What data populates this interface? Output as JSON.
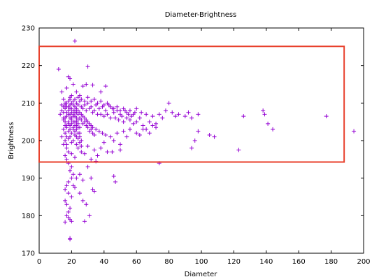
{
  "chart_data": {
    "type": "scatter",
    "title": "Diameter-Brightness",
    "xlabel": "Diameter",
    "ylabel": "Brightness",
    "xlim": [
      0,
      200
    ],
    "ylim": [
      170,
      230
    ],
    "xticks": [
      "0",
      "20",
      "40",
      "60",
      "80",
      "100",
      "120",
      "140",
      "160",
      "180",
      "200"
    ],
    "yticks": [
      "170",
      "180",
      "190",
      "200",
      "210",
      "220",
      "230"
    ],
    "grid": false,
    "legend": "none",
    "marker": "plus",
    "point_color": "#9400d3",
    "highlight_box": {
      "x0": 0,
      "x1": 188,
      "y0": 194.3,
      "y1": 225.1,
      "color": "#e8412c"
    },
    "series": [
      {
        "points": [
          [
            12,
            219
          ],
          [
            14,
            213
          ],
          [
            15,
            211
          ],
          [
            16,
            210
          ],
          [
            14,
            208
          ],
          [
            13,
            207
          ],
          [
            15,
            206
          ],
          [
            16,
            205
          ],
          [
            17,
            204
          ],
          [
            15,
            203
          ],
          [
            14,
            201
          ],
          [
            16,
            200
          ],
          [
            15,
            199
          ],
          [
            17,
            198
          ],
          [
            18,
            197
          ],
          [
            16,
            196
          ],
          [
            17,
            195
          ],
          [
            18,
            194
          ],
          [
            20,
            193
          ],
          [
            19,
            192
          ],
          [
            21,
            191
          ],
          [
            20,
            190
          ],
          [
            18,
            189
          ],
          [
            17,
            188
          ],
          [
            16,
            187
          ],
          [
            18,
            186
          ],
          [
            20,
            185
          ],
          [
            16,
            184
          ],
          [
            17,
            183
          ],
          [
            19,
            182
          ],
          [
            18,
            181
          ],
          [
            17,
            180
          ],
          [
            19,
            179
          ],
          [
            20,
            178.5
          ],
          [
            16,
            178.3
          ],
          [
            18,
            179.5
          ],
          [
            19,
            174
          ],
          [
            19,
            173.7
          ],
          [
            22,
            226.5
          ],
          [
            30,
            219.7
          ],
          [
            18,
            217
          ],
          [
            19,
            216.5
          ],
          [
            21,
            215
          ],
          [
            17,
            214
          ],
          [
            23,
            213
          ],
          [
            25,
            212
          ],
          [
            27,
            214.5
          ],
          [
            29,
            215
          ],
          [
            33,
            214.8
          ],
          [
            38,
            213
          ],
          [
            41,
            214.5
          ],
          [
            19,
            211
          ],
          [
            20,
            210
          ],
          [
            21,
            209.5
          ],
          [
            22,
            209
          ],
          [
            23,
            208.5
          ],
          [
            24,
            208
          ],
          [
            25,
            207.5
          ],
          [
            26,
            207
          ],
          [
            27,
            206.5
          ],
          [
            28,
            206
          ],
          [
            29,
            205.5
          ],
          [
            30,
            205
          ],
          [
            31,
            204.5
          ],
          [
            32,
            204
          ],
          [
            33,
            203.5
          ],
          [
            35,
            203
          ],
          [
            37,
            202.5
          ],
          [
            39,
            202
          ],
          [
            41,
            201.5
          ],
          [
            17,
            209
          ],
          [
            18,
            208
          ],
          [
            19,
            207
          ],
          [
            20,
            206
          ],
          [
            21,
            205
          ],
          [
            22,
            204
          ],
          [
            23,
            203
          ],
          [
            24,
            202
          ],
          [
            25,
            201
          ],
          [
            26,
            200
          ],
          [
            18,
            210.5
          ],
          [
            19,
            211.5
          ],
          [
            20,
            212
          ],
          [
            21,
            210.5
          ],
          [
            22,
            211
          ],
          [
            23,
            210
          ],
          [
            24,
            209.5
          ],
          [
            25,
            210.5
          ],
          [
            26,
            209
          ],
          [
            27,
            208.5
          ],
          [
            28,
            209.5
          ],
          [
            29,
            208
          ],
          [
            30,
            210
          ],
          [
            31,
            208.5
          ],
          [
            32,
            209
          ],
          [
            33,
            207.5
          ],
          [
            34,
            208
          ],
          [
            35,
            209.5
          ],
          [
            36,
            207
          ],
          [
            37,
            208.5
          ],
          [
            38,
            207
          ],
          [
            39,
            209
          ],
          [
            40,
            206.5
          ],
          [
            41,
            208
          ],
          [
            42,
            207
          ],
          [
            43,
            209.5
          ],
          [
            44,
            206
          ],
          [
            45,
            208.5
          ],
          [
            46,
            207.5
          ],
          [
            47,
            206
          ],
          [
            48,
            208
          ],
          [
            49,
            205.5
          ],
          [
            50,
            207
          ],
          [
            51,
            206.5
          ],
          [
            52,
            205
          ],
          [
            53,
            208
          ],
          [
            54,
            206
          ],
          [
            55,
            207
          ],
          [
            56,
            205.5
          ],
          [
            57,
            206.5
          ],
          [
            58,
            204.5
          ],
          [
            59,
            207.5
          ],
          [
            60,
            205
          ],
          [
            62,
            206
          ],
          [
            64,
            204
          ],
          [
            66,
            207
          ],
          [
            68,
            205
          ],
          [
            70,
            206.5
          ],
          [
            72,
            204.5
          ],
          [
            74,
            207
          ],
          [
            76,
            206
          ],
          [
            78,
            208
          ],
          [
            80,
            210
          ],
          [
            82,
            207.5
          ],
          [
            84,
            206.5
          ],
          [
            86,
            207
          ],
          [
            90,
            206.5
          ],
          [
            92,
            207.5
          ],
          [
            94,
            206
          ],
          [
            98,
            207
          ],
          [
            66,
            203
          ],
          [
            68,
            202
          ],
          [
            70,
            204
          ],
          [
            72,
            203.5
          ],
          [
            60,
            202
          ],
          [
            62,
            201.5
          ],
          [
            64,
            203
          ],
          [
            52,
            202.5
          ],
          [
            54,
            201
          ],
          [
            56,
            203
          ],
          [
            44,
            201
          ],
          [
            46,
            200
          ],
          [
            48,
            202
          ],
          [
            50,
            199
          ],
          [
            38,
            198
          ],
          [
            40,
            199.5
          ],
          [
            42,
            197
          ],
          [
            34,
            197.5
          ],
          [
            36,
            196
          ],
          [
            30,
            198.5
          ],
          [
            32,
            195
          ],
          [
            28,
            196.5
          ],
          [
            26,
            197
          ],
          [
            24,
            198
          ],
          [
            22,
            195.5
          ],
          [
            20,
            196.5
          ],
          [
            23,
            190
          ],
          [
            25,
            191
          ],
          [
            27,
            189.5
          ],
          [
            30,
            193
          ],
          [
            32,
            190
          ],
          [
            33,
            187
          ],
          [
            34,
            186.5
          ],
          [
            29,
            183
          ],
          [
            27,
            184
          ],
          [
            31,
            180
          ],
          [
            28,
            178.5
          ],
          [
            25,
            186
          ],
          [
            22,
            187.5
          ],
          [
            21,
            188
          ],
          [
            46,
            190.5
          ],
          [
            47,
            189
          ],
          [
            35,
            194.5
          ],
          [
            45,
            197
          ],
          [
            50,
            197.5
          ],
          [
            94,
            198
          ],
          [
            96,
            200
          ],
          [
            98,
            202.5
          ],
          [
            105,
            201.5
          ],
          [
            108,
            201
          ],
          [
            74,
            194
          ],
          [
            123,
            197.5
          ],
          [
            126,
            206.5
          ],
          [
            138,
            208
          ],
          [
            139,
            207
          ],
          [
            141,
            204.5
          ],
          [
            144,
            203
          ],
          [
            177,
            206.5
          ],
          [
            194,
            202.5
          ],
          [
            15,
            207.5
          ],
          [
            16,
            208.5
          ],
          [
            17,
            206.5
          ],
          [
            18,
            207
          ],
          [
            19,
            208.5
          ],
          [
            20,
            207.5
          ],
          [
            21,
            206.5
          ],
          [
            22,
            207.5
          ],
          [
            23,
            206
          ],
          [
            24,
            207
          ],
          [
            15,
            205.5
          ],
          [
            16,
            206
          ],
          [
            17,
            207.5
          ],
          [
            18,
            205
          ],
          [
            19,
            206
          ],
          [
            20,
            205.5
          ],
          [
            21,
            207
          ],
          [
            22,
            206.5
          ],
          [
            23,
            205
          ],
          [
            24,
            205.5
          ],
          [
            14,
            209.5
          ],
          [
            15,
            209
          ],
          [
            16,
            209.5
          ],
          [
            17,
            210
          ],
          [
            18,
            209
          ],
          [
            19,
            209.5
          ],
          [
            20,
            208.5
          ],
          [
            21,
            208
          ],
          [
            22,
            208
          ],
          [
            23,
            207.5
          ],
          [
            25,
            206
          ],
          [
            26,
            205.5
          ],
          [
            27,
            204.5
          ],
          [
            28,
            205
          ],
          [
            29,
            204
          ],
          [
            30,
            203.5
          ],
          [
            31,
            202.5
          ],
          [
            32,
            203
          ],
          [
            33,
            202
          ],
          [
            34,
            201.5
          ],
          [
            24,
            211.5
          ],
          [
            26,
            211
          ],
          [
            28,
            210.5
          ],
          [
            30,
            211.5
          ],
          [
            32,
            210.5
          ],
          [
            34,
            211
          ],
          [
            36,
            210
          ],
          [
            38,
            210.5
          ],
          [
            40,
            209.5
          ],
          [
            42,
            210
          ],
          [
            44,
            209
          ],
          [
            46,
            208.5
          ],
          [
            48,
            209
          ],
          [
            50,
            208
          ],
          [
            52,
            208.5
          ],
          [
            54,
            207.5
          ],
          [
            56,
            208
          ],
          [
            58,
            207
          ],
          [
            60,
            208.5
          ],
          [
            63,
            207.5
          ],
          [
            17,
            199
          ],
          [
            18,
            200.5
          ],
          [
            19,
            201
          ],
          [
            20,
            199.5
          ],
          [
            21,
            200
          ],
          [
            22,
            201.5
          ],
          [
            23,
            199
          ],
          [
            24,
            200.5
          ],
          [
            25,
            199.5
          ],
          [
            26,
            198.5
          ],
          [
            16,
            202
          ],
          [
            17,
            201
          ],
          [
            18,
            202.5
          ],
          [
            19,
            203
          ],
          [
            20,
            202
          ],
          [
            21,
            203.5
          ],
          [
            22,
            202.5
          ],
          [
            23,
            201
          ],
          [
            24,
            203.5
          ],
          [
            25,
            202
          ],
          [
            16,
            204
          ],
          [
            17,
            203.5
          ],
          [
            18,
            204.5
          ],
          [
            19,
            204
          ],
          [
            20,
            204.5
          ],
          [
            21,
            203
          ],
          [
            22,
            205
          ],
          [
            23,
            204
          ],
          [
            24,
            204.5
          ],
          [
            25,
            203.5
          ]
        ]
      }
    ]
  }
}
